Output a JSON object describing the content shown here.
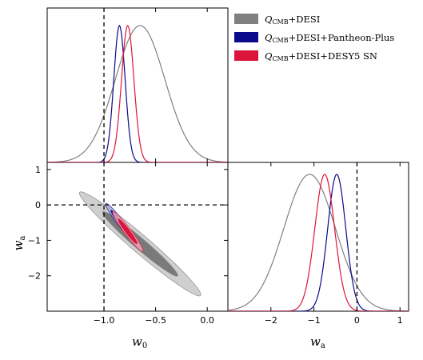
{
  "chart_data": {
    "type": "triangle-corner",
    "parameters": [
      "w_0",
      "w_a"
    ],
    "axis_labels": {
      "w0": "w",
      "w0_sub": "0",
      "wa": "w",
      "wa_sub": "a"
    },
    "ranges": {
      "w0": [
        -1.55,
        0.2
      ],
      "wa": [
        -3.0,
        1.2
      ]
    },
    "ticks": {
      "w0": [
        {
          "v": -1.0,
          "label": "−1.0"
        },
        {
          "v": -0.5,
          "label": "−0.5"
        },
        {
          "v": 0.0,
          "label": "0.0"
        }
      ],
      "wa_left": [
        {
          "v": 1,
          "label": "1"
        },
        {
          "v": 0,
          "label": "0"
        },
        {
          "v": -1,
          "label": "−1"
        },
        {
          "v": -2,
          "label": "−2"
        }
      ],
      "wa_bottom": [
        {
          "v": -2,
          "label": "−2"
        },
        {
          "v": -1,
          "label": "−1"
        },
        {
          "v": 0,
          "label": "0"
        },
        {
          "v": 1,
          "label": "1"
        }
      ]
    },
    "reference": {
      "w0": -1,
      "wa": 0
    },
    "legend_position": "top-right",
    "series": [
      {
        "name": "Q",
        "name_sub": "CMB",
        "name_suffix": "+DESI",
        "color": "#808080",
        "fill_outer": "#cfcfcf",
        "fill_inner": "#7a7a7a",
        "w0_mean": -0.65,
        "w0_sigma": 0.24,
        "wa_mean": -1.1,
        "wa_sigma": 0.6,
        "rho": -0.975
      },
      {
        "name": "Q",
        "name_sub": "CMB",
        "name_suffix": "+DESI+Pantheon-Plus",
        "color": "#0a0a8c",
        "fill_outer": "#a9abd6",
        "fill_inner": "#20208f",
        "w0_mean": -0.85,
        "w0_sigma": 0.055,
        "wa_mean": -0.47,
        "wa_sigma": 0.21,
        "rho": -0.96
      },
      {
        "name": "Q",
        "name_sub": "CMB",
        "name_suffix": "+DESI+DESY5 SN",
        "color": "#dc143c",
        "fill_outer": "#f0a7b5",
        "fill_inner": "#dc143c",
        "w0_mean": -0.77,
        "w0_sigma": 0.06,
        "wa_mean": -0.75,
        "wa_sigma": 0.23,
        "rho": -0.96
      }
    ]
  }
}
